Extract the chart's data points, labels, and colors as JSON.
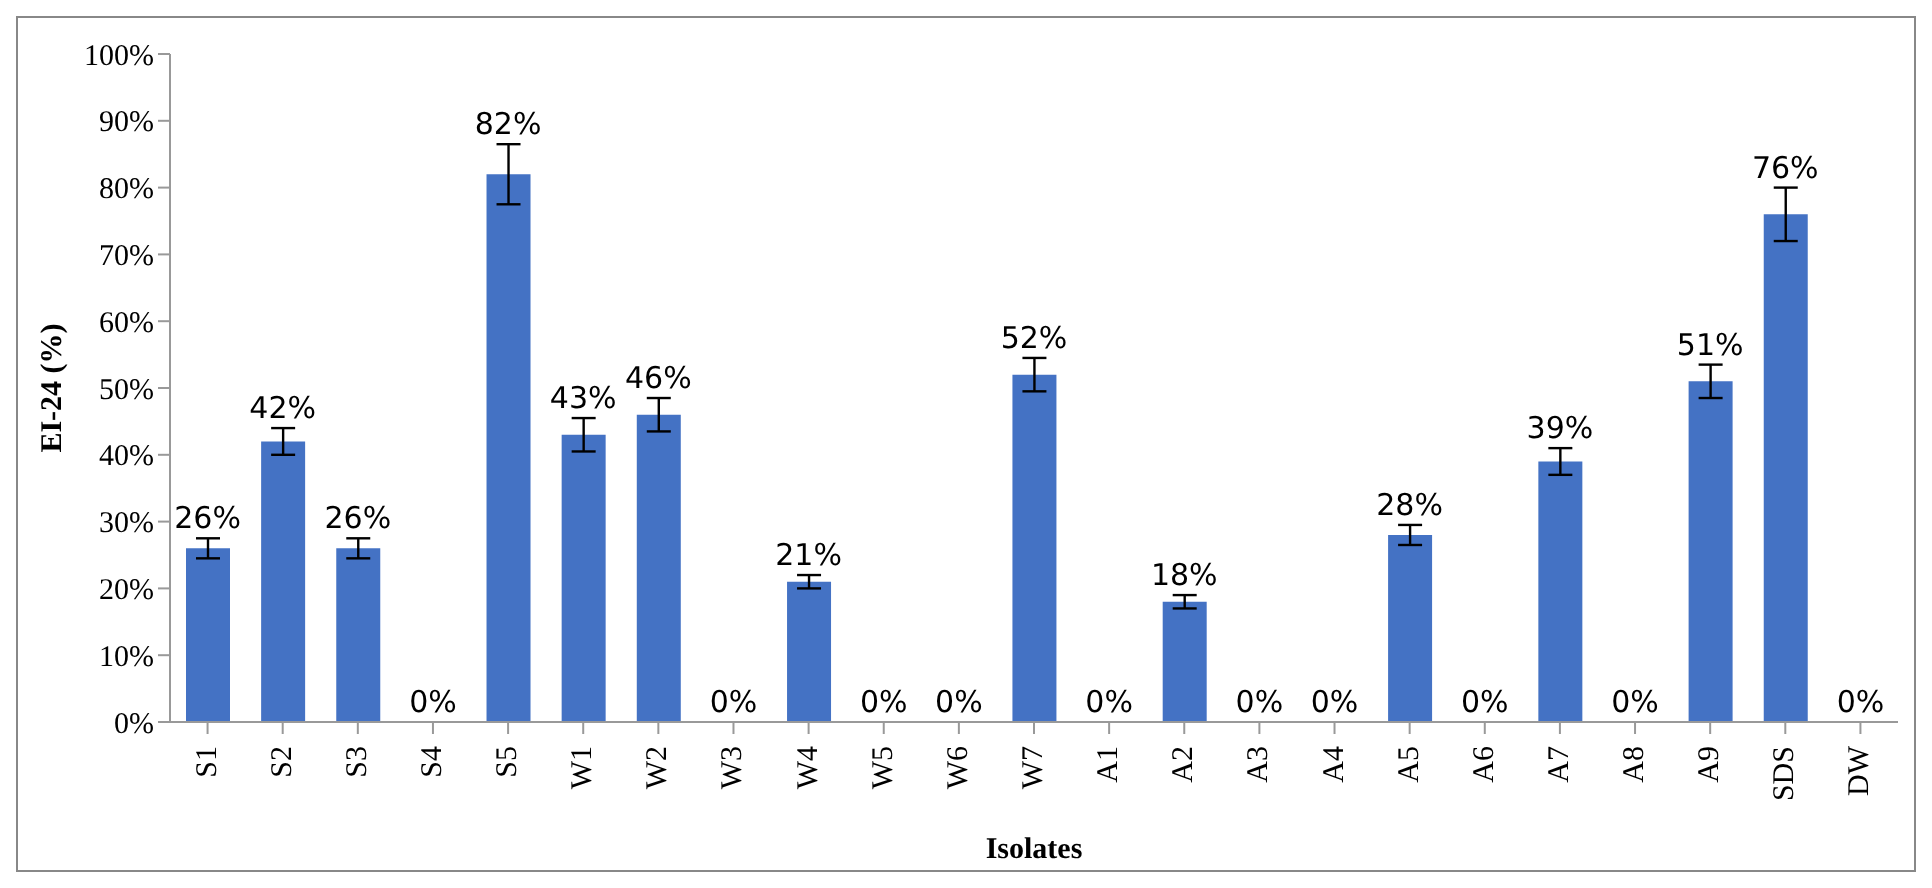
{
  "chart_data": {
    "type": "bar",
    "xlabel": "Isolates",
    "ylabel": "EI-24 (%)",
    "categories": [
      "S1",
      "S2",
      "S3",
      "S4",
      "S5",
      "W1",
      "W2",
      "W3",
      "W4",
      "W5",
      "W6",
      "W7",
      "A1",
      "A2",
      "A3",
      "A4",
      "A5",
      "A6",
      "A7",
      "A8",
      "A9",
      "SDS",
      "DW"
    ],
    "values": [
      26,
      42,
      26,
      0,
      82,
      43,
      46,
      0,
      21,
      0,
      0,
      52,
      0,
      18,
      0,
      0,
      28,
      0,
      39,
      0,
      51,
      76,
      0
    ],
    "errors": [
      1.5,
      2,
      1.5,
      null,
      4.5,
      2.5,
      2.5,
      null,
      1,
      null,
      null,
      2.5,
      null,
      1,
      null,
      null,
      1.5,
      null,
      2,
      null,
      2.5,
      4,
      null
    ],
    "value_labels": [
      "26%",
      "42%",
      "26%",
      "0%",
      "82%",
      "43%",
      "46%",
      "0%",
      "21%",
      "0%",
      "0%",
      "52%",
      "0%",
      "18%",
      "0%",
      "0%",
      "28%",
      "0%",
      "39%",
      "0%",
      "51%",
      "76%",
      "0%"
    ],
    "color": "#4472c4",
    "ylim": [
      0,
      100
    ],
    "yticks": [
      {
        "value": 0,
        "label": "0%"
      },
      {
        "value": 10,
        "label": "10%"
      },
      {
        "value": 20,
        "label": "20%"
      },
      {
        "value": 30,
        "label": "30%"
      },
      {
        "value": 40,
        "label": "40%"
      },
      {
        "value": 50,
        "label": "50%"
      },
      {
        "value": 60,
        "label": "60%"
      },
      {
        "value": 70,
        "label": "70%"
      },
      {
        "value": 80,
        "label": "80%"
      },
      {
        "value": 90,
        "label": "90%"
      },
      {
        "value": 100,
        "label": "100%"
      }
    ],
    "grid": false,
    "legend": false
  }
}
